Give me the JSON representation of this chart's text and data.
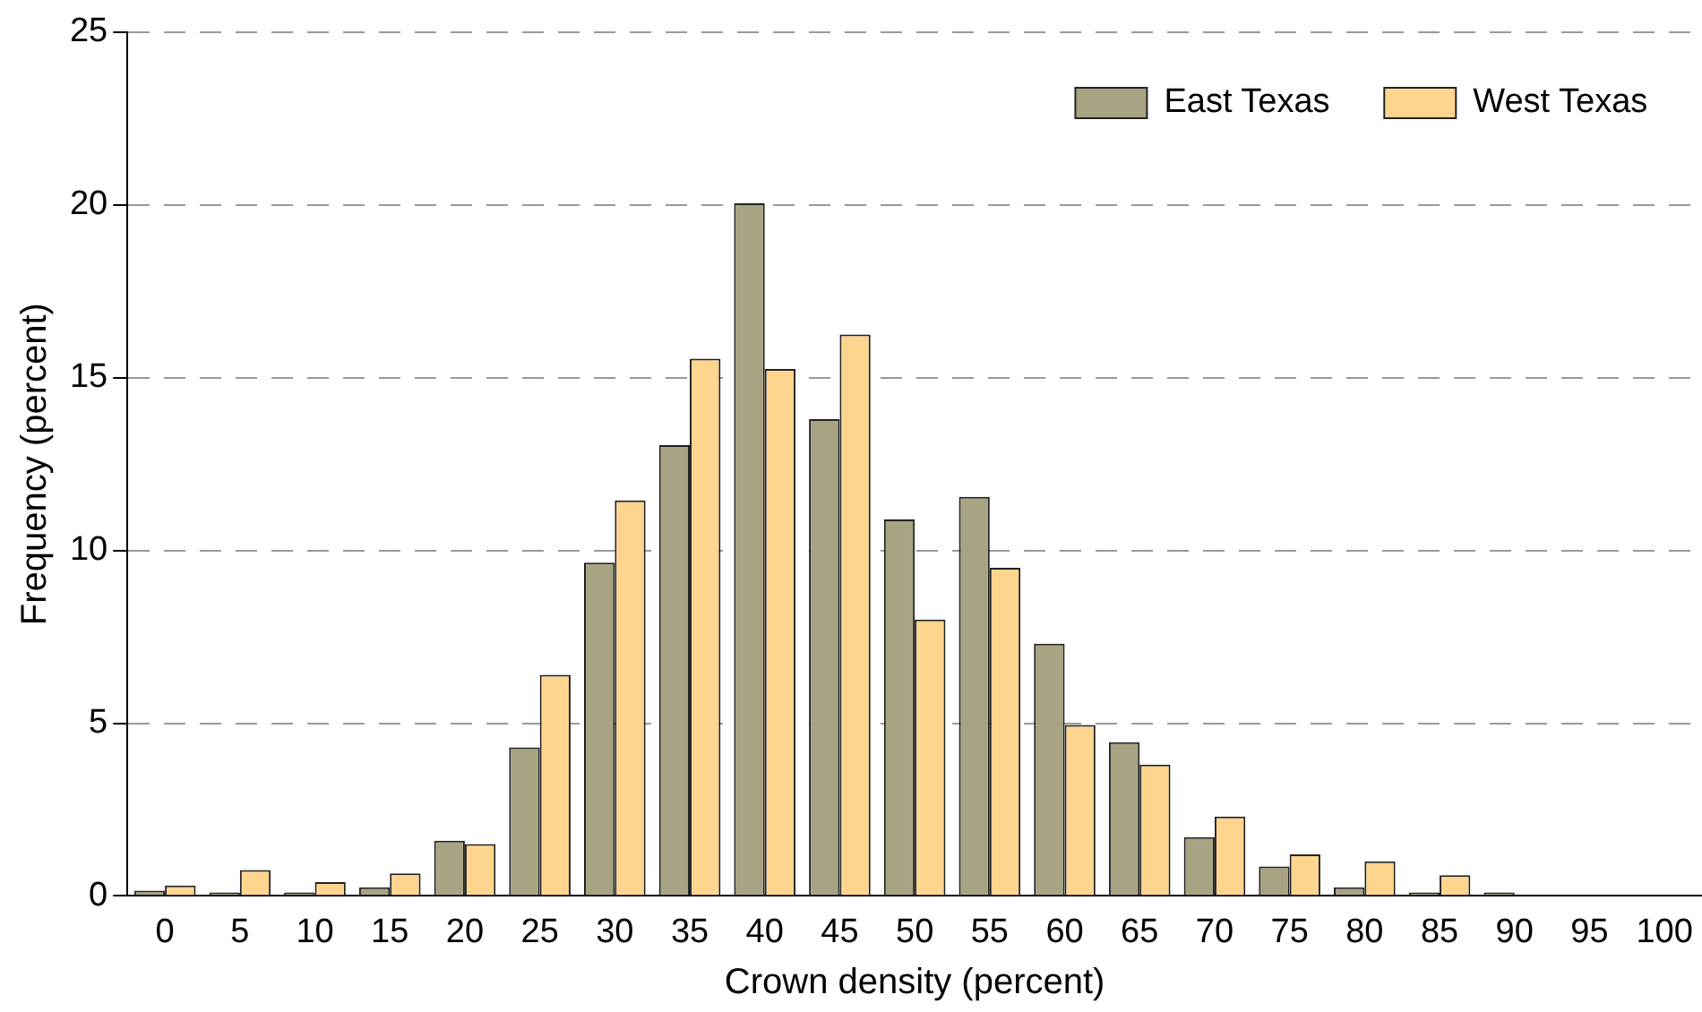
{
  "chart_data": {
    "type": "bar",
    "xlabel": "Crown density (percent)",
    "ylabel": "Frequency (percent)",
    "categories": [
      "0",
      "5",
      "10",
      "15",
      "20",
      "25",
      "30",
      "35",
      "40",
      "45",
      "50",
      "55",
      "60",
      "65",
      "70",
      "75",
      "80",
      "85",
      "90",
      "95",
      "100"
    ],
    "series": [
      {
        "name": "East Texas",
        "color": "#a8a383",
        "values": [
          0.15,
          0.1,
          0.1,
          0.25,
          1.6,
          4.3,
          9.65,
          13.05,
          20.05,
          13.8,
          10.9,
          11.55,
          7.3,
          4.45,
          1.7,
          0.85,
          0.25,
          0.1,
          0.1,
          0,
          0
        ]
      },
      {
        "name": "West Texas",
        "color": "#fdd58f",
        "values": [
          0.3,
          0.75,
          0.4,
          0.65,
          1.5,
          6.4,
          11.45,
          15.55,
          15.25,
          16.25,
          8.0,
          9.5,
          4.95,
          3.8,
          2.3,
          1.2,
          1.0,
          0.6,
          0,
          0,
          0
        ]
      }
    ],
    "ylim": [
      0,
      25
    ],
    "yticks": [
      0,
      5,
      10,
      15,
      20,
      25
    ],
    "grid": "y",
    "legend": "top right"
  }
}
